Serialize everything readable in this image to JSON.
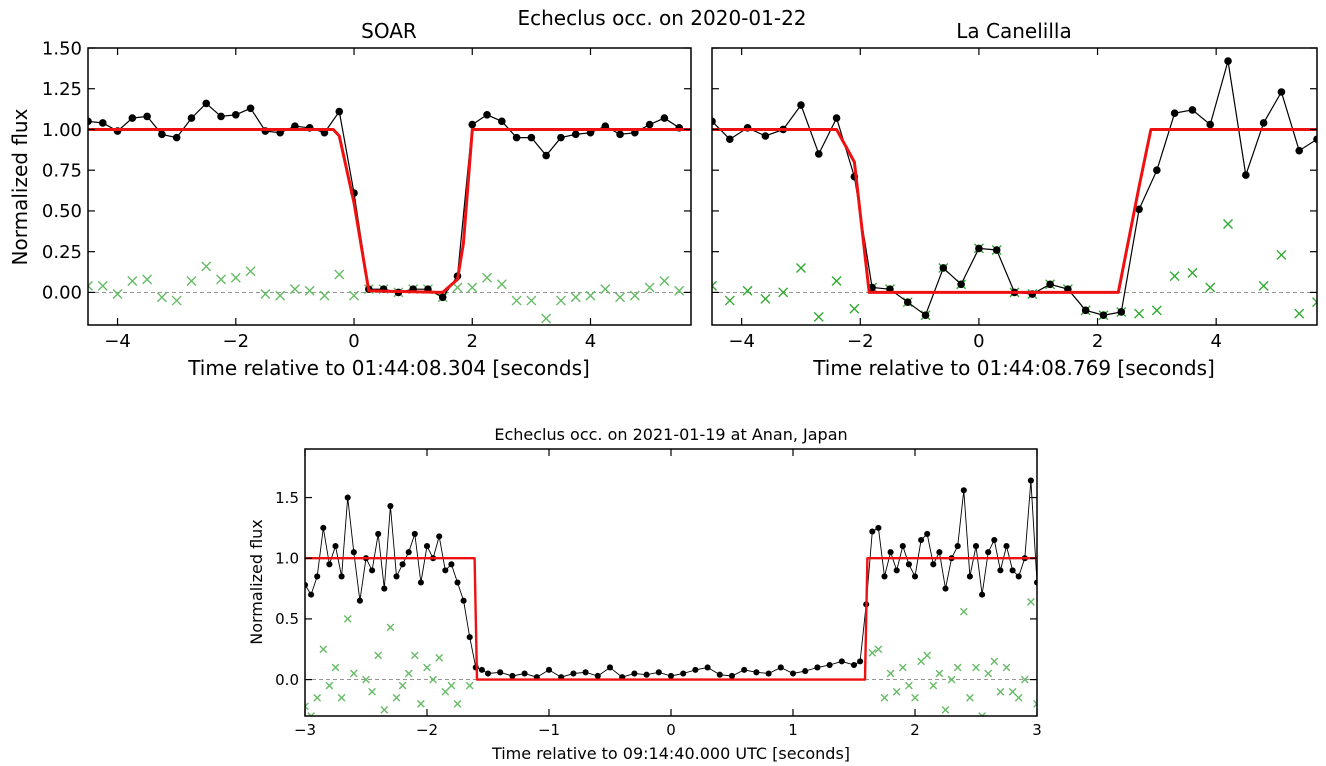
{
  "figure_title": "Echeclus occ. on 2020-01-22",
  "chart_data": [
    {
      "type": "line",
      "title": "SOAR",
      "xlabel": "Time relative to 01:44:08.304 [seconds]",
      "ylabel": "Normalized flux",
      "xlim": [
        -4.5,
        5.7
      ],
      "ylim": [
        -0.2,
        1.5
      ],
      "xticks": [
        -4,
        -2,
        0,
        2,
        4
      ],
      "yticks": [
        0.0,
        0.25,
        0.5,
        0.75,
        1.0,
        1.25,
        1.5
      ],
      "ytick_labels": [
        "0.00",
        "0.25",
        "0.50",
        "0.75",
        "1.00",
        "1.25",
        "1.50"
      ],
      "zero_line": true,
      "series": [
        {
          "role": "observed",
          "color": "#000000",
          "x": [
            -4.5,
            -4.25,
            -4.0,
            -3.75,
            -3.5,
            -3.25,
            -3.0,
            -2.75,
            -2.5,
            -2.25,
            -2.0,
            -1.75,
            -1.5,
            -1.25,
            -1.0,
            -0.75,
            -0.5,
            -0.25,
            0.0,
            0.25,
            0.5,
            0.75,
            1.0,
            1.25,
            1.5,
            1.75,
            2.0,
            2.25,
            2.5,
            2.75,
            3.0,
            3.25,
            3.5,
            3.75,
            4.0,
            4.25,
            4.5,
            4.75,
            5.0,
            5.25,
            5.5
          ],
          "y": [
            1.05,
            1.04,
            0.99,
            1.07,
            1.08,
            0.97,
            0.95,
            1.07,
            1.16,
            1.08,
            1.09,
            1.13,
            0.99,
            0.98,
            1.02,
            1.01,
            0.98,
            1.11,
            0.61,
            0.02,
            0.02,
            0.0,
            0.02,
            0.02,
            -0.03,
            0.1,
            1.03,
            1.09,
            1.05,
            0.95,
            0.95,
            0.84,
            0.95,
            0.97,
            0.98,
            1.02,
            0.97,
            0.98,
            1.03,
            1.07,
            1.01
          ]
        },
        {
          "role": "residual",
          "color": "#66bb66",
          "x": [
            -4.5,
            -4.25,
            -4.0,
            -3.75,
            -3.5,
            -3.25,
            -3.0,
            -2.75,
            -2.5,
            -2.25,
            -2.0,
            -1.75,
            -1.5,
            -1.25,
            -1.0,
            -0.75,
            -0.5,
            -0.25,
            0.0,
            0.25,
            0.5,
            0.75,
            1.0,
            1.25,
            1.5,
            1.75,
            2.0,
            2.25,
            2.5,
            2.75,
            3.0,
            3.25,
            3.5,
            3.75,
            4.0,
            4.25,
            4.5,
            4.75,
            5.0,
            5.25,
            5.5
          ],
          "y": [
            0.04,
            0.04,
            -0.01,
            0.07,
            0.08,
            -0.03,
            -0.05,
            0.07,
            0.16,
            0.08,
            0.09,
            0.13,
            -0.01,
            -0.02,
            0.02,
            0.01,
            -0.02,
            0.11,
            -0.02,
            0.02,
            0.02,
            0.0,
            0.02,
            0.02,
            -0.03,
            0.03,
            0.03,
            0.09,
            0.05,
            -0.05,
            -0.05,
            -0.16,
            -0.05,
            -0.03,
            -0.02,
            0.02,
            -0.03,
            -0.02,
            0.03,
            0.07,
            0.01
          ]
        },
        {
          "role": "model",
          "color": "#ee1111",
          "x": [
            -4.5,
            -0.35,
            -0.25,
            0.0,
            0.25,
            1.5,
            1.75,
            1.85,
            2.0,
            5.7
          ],
          "y": [
            1.0,
            1.0,
            0.96,
            0.55,
            0.01,
            0.0,
            0.08,
            0.3,
            1.0,
            1.0
          ]
        }
      ]
    },
    {
      "type": "line",
      "title": "La Canelilla",
      "xlabel": "Time relative to 01:44:08.769 [seconds]",
      "ylabel": "",
      "xlim": [
        -4.5,
        5.7
      ],
      "ylim": [
        -0.2,
        1.5
      ],
      "xticks": [
        -4,
        -2,
        0,
        2,
        4
      ],
      "yticks": [
        0.0,
        0.25,
        0.5,
        0.75,
        1.0,
        1.25,
        1.5
      ],
      "zero_line": true,
      "series": [
        {
          "role": "observed",
          "color": "#000000",
          "x": [
            -4.5,
            -4.2,
            -3.9,
            -3.6,
            -3.3,
            -3.0,
            -2.7,
            -2.4,
            -2.1,
            -1.8,
            -1.5,
            -1.2,
            -0.9,
            -0.6,
            -0.3,
            0.0,
            0.3,
            0.6,
            0.9,
            1.2,
            1.5,
            1.8,
            2.1,
            2.4,
            2.7,
            3.0,
            3.3,
            3.6,
            3.9,
            4.2,
            4.5,
            4.8,
            5.1,
            5.4,
            5.7
          ],
          "y": [
            1.05,
            0.94,
            1.01,
            0.96,
            1.0,
            1.15,
            0.85,
            1.07,
            0.71,
            0.03,
            0.02,
            -0.06,
            -0.14,
            0.15,
            0.05,
            0.27,
            0.26,
            0.0,
            -0.01,
            0.05,
            0.02,
            -0.11,
            -0.14,
            -0.12,
            0.51,
            0.75,
            1.1,
            1.12,
            1.03,
            1.42,
            0.72,
            1.04,
            1.23,
            0.87,
            0.94
          ]
        },
        {
          "role": "residual",
          "color": "#33aa33",
          "x": [
            -4.5,
            -4.2,
            -3.9,
            -3.6,
            -3.3,
            -3.0,
            -2.7,
            -2.4,
            -2.1,
            -1.8,
            -1.5,
            -1.2,
            -0.9,
            -0.6,
            -0.3,
            0.0,
            0.3,
            0.6,
            0.9,
            1.2,
            1.5,
            1.8,
            2.1,
            2.4,
            2.7,
            3.0,
            3.3,
            3.6,
            3.9,
            4.2,
            4.5,
            4.8,
            5.1,
            5.4,
            5.7
          ],
          "y": [
            0.04,
            -0.05,
            0.01,
            -0.04,
            0.0,
            0.15,
            -0.15,
            0.07,
            -0.1,
            0.03,
            0.02,
            -0.06,
            -0.14,
            0.15,
            0.05,
            0.27,
            0.26,
            0.0,
            -0.01,
            0.05,
            0.02,
            -0.11,
            -0.14,
            -0.12,
            -0.13,
            -0.11,
            0.1,
            0.12,
            0.03,
            0.42,
            -0.28,
            0.04,
            0.23,
            -0.13,
            -0.06
          ]
        },
        {
          "role": "model",
          "color": "#ee1111",
          "x": [
            -4.5,
            -2.4,
            -2.1,
            -1.85,
            2.35,
            2.7,
            2.9,
            5.7
          ],
          "y": [
            1.0,
            1.0,
            0.8,
            0.0,
            0.0,
            0.65,
            1.0,
            1.0
          ]
        }
      ]
    },
    {
      "type": "line",
      "title": "Echeclus occ. on 2021-01-19 at Anan, Japan",
      "xlabel": "Time relative to 09:14:40.000 UTC [seconds]",
      "ylabel": "Normalized flux",
      "xlim": [
        -3,
        3
      ],
      "ylim": [
        -0.3,
        1.9
      ],
      "xticks": [
        -3,
        -2,
        -1,
        0,
        1,
        2,
        3
      ],
      "yticks": [
        0.0,
        0.5,
        1.0,
        1.5
      ],
      "ytick_labels": [
        "0.0",
        "0.5",
        "1.0",
        "1.5"
      ],
      "zero_line": true,
      "series": [
        {
          "role": "observed",
          "color": "#000000",
          "x": [
            -3.0,
            -2.95,
            -2.9,
            -2.85,
            -2.8,
            -2.75,
            -2.7,
            -2.65,
            -2.6,
            -2.55,
            -2.5,
            -2.45,
            -2.4,
            -2.35,
            -2.3,
            -2.25,
            -2.2,
            -2.15,
            -2.1,
            -2.05,
            -2.0,
            -1.95,
            -1.9,
            -1.85,
            -1.8,
            -1.75,
            -1.7,
            -1.65,
            -1.6,
            -1.55,
            -1.5,
            -1.4,
            -1.3,
            -1.2,
            -1.1,
            -1.0,
            -0.9,
            -0.8,
            -0.7,
            -0.6,
            -0.5,
            -0.4,
            -0.3,
            -0.2,
            -0.1,
            0.0,
            0.1,
            0.2,
            0.3,
            0.4,
            0.5,
            0.6,
            0.7,
            0.8,
            0.9,
            1.0,
            1.1,
            1.2,
            1.3,
            1.4,
            1.5,
            1.55,
            1.6,
            1.65,
            1.7,
            1.75,
            1.8,
            1.85,
            1.9,
            1.95,
            2.0,
            2.05,
            2.1,
            2.15,
            2.2,
            2.25,
            2.3,
            2.35,
            2.4,
            2.45,
            2.5,
            2.55,
            2.6,
            2.65,
            2.7,
            2.75,
            2.8,
            2.85,
            2.9,
            2.95,
            3.0
          ],
          "y": [
            0.78,
            0.7,
            0.85,
            1.25,
            0.95,
            1.1,
            0.85,
            1.5,
            1.05,
            0.65,
            1.0,
            0.9,
            1.2,
            0.75,
            1.43,
            0.85,
            0.95,
            1.05,
            1.2,
            0.8,
            1.1,
            1.0,
            1.18,
            0.9,
            0.95,
            0.8,
            0.65,
            0.35,
            0.1,
            0.08,
            0.05,
            0.06,
            0.03,
            0.05,
            0.02,
            0.08,
            0.02,
            0.05,
            0.06,
            0.03,
            0.1,
            0.02,
            0.05,
            0.04,
            0.06,
            0.03,
            0.05,
            0.08,
            0.1,
            0.04,
            0.03,
            0.08,
            0.06,
            0.05,
            0.1,
            0.05,
            0.07,
            0.1,
            0.12,
            0.15,
            0.12,
            0.15,
            0.62,
            1.22,
            1.25,
            0.85,
            1.05,
            0.9,
            1.1,
            0.95,
            0.85,
            1.15,
            1.2,
            0.95,
            1.05,
            0.75,
            1.0,
            1.1,
            1.56,
            0.85,
            1.1,
            0.7,
            1.05,
            1.15,
            0.9,
            1.1,
            0.9,
            0.85,
            1.0,
            1.64,
            0.8
          ]
        },
        {
          "role": "residual",
          "color": "#66bb66",
          "x": [
            -3.0,
            -2.95,
            -2.9,
            -2.85,
            -2.8,
            -2.75,
            -2.7,
            -2.65,
            -2.6,
            -2.55,
            -2.5,
            -2.45,
            -2.4,
            -2.35,
            -2.3,
            -2.25,
            -2.2,
            -2.15,
            -2.1,
            -2.05,
            -2.0,
            -1.95,
            -1.9,
            -1.85,
            -1.8,
            -1.75,
            -1.7,
            -1.65,
            1.6,
            1.65,
            1.7,
            1.75,
            1.8,
            1.85,
            1.9,
            1.95,
            2.0,
            2.05,
            2.1,
            2.15,
            2.2,
            2.25,
            2.3,
            2.35,
            2.4,
            2.45,
            2.5,
            2.55,
            2.6,
            2.65,
            2.7,
            2.75,
            2.8,
            2.85,
            2.9,
            2.95,
            3.0
          ],
          "y": [
            -0.22,
            -0.3,
            -0.15,
            0.25,
            -0.05,
            0.1,
            -0.15,
            0.5,
            0.05,
            -0.35,
            0.0,
            -0.1,
            0.2,
            -0.25,
            0.43,
            -0.15,
            -0.05,
            0.05,
            0.2,
            -0.2,
            0.1,
            0.0,
            0.18,
            -0.1,
            -0.05,
            -0.2,
            -0.35,
            -0.05,
            -0.38,
            0.22,
            0.25,
            -0.15,
            0.05,
            -0.1,
            0.1,
            -0.05,
            -0.15,
            0.15,
            0.2,
            -0.05,
            0.05,
            -0.25,
            0.0,
            0.1,
            0.56,
            -0.15,
            0.1,
            -0.3,
            0.05,
            0.15,
            -0.1,
            0.1,
            -0.1,
            -0.15,
            0.0,
            0.64,
            -0.2
          ]
        },
        {
          "role": "model",
          "color": "#ee1111",
          "x": [
            -3.0,
            -1.61,
            -1.59,
            1.59,
            1.61,
            3.0
          ],
          "y": [
            1.0,
            1.0,
            0.0,
            0.0,
            1.0,
            1.0
          ]
        }
      ]
    }
  ]
}
